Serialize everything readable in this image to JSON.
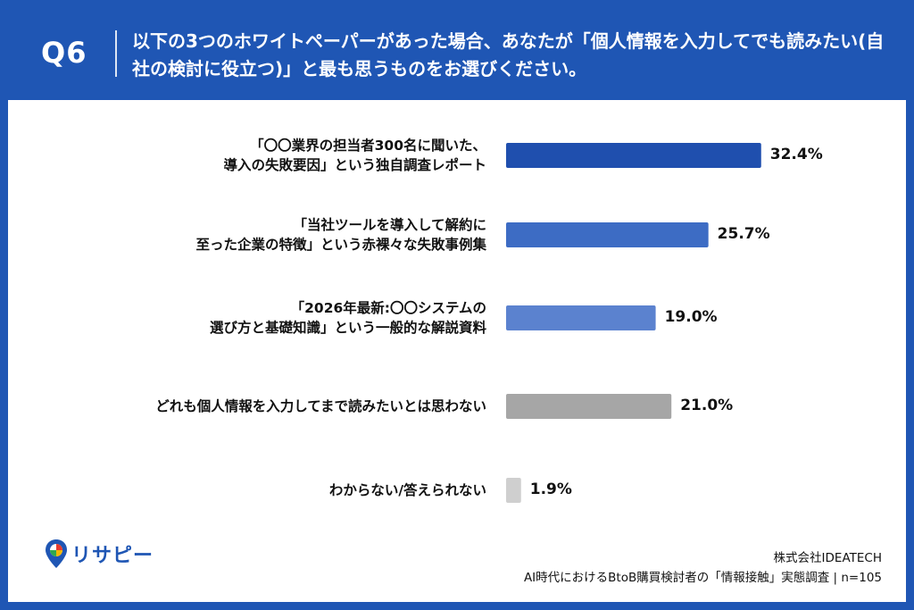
{
  "header": {
    "question_label": "Q6",
    "question_text": "以下の3つのホワイトペーパーがあった場合、あなたが「個人情報を入力してでも読みたい(自社の検討に役立つ)」と最も思うものをお選びください。"
  },
  "chart_data": {
    "type": "bar",
    "orientation": "horizontal",
    "categories": [
      [
        "「〇〇業界の担当者300名に聞いた、",
        "導入の失敗要因」という独自調査レポート"
      ],
      [
        "「当社ツールを導入して解約に",
        "至った企業の特徴」という赤裸々な失敗事例集"
      ],
      [
        "「2026年最新:〇〇システムの",
        "選び方と基礎知識」という一般的な解説資料"
      ],
      [
        "どれも個人情報を入力してまで読みたいとは思わない"
      ],
      [
        "わからない/答えられない"
      ]
    ],
    "values": [
      32.4,
      25.7,
      19.0,
      21.0,
      1.9
    ],
    "value_labels": [
      "32.4%",
      "25.7%",
      "19.0%",
      "21.0%",
      "1.9%"
    ],
    "colors": [
      "#1f4fae",
      "#3d6cc4",
      "#5b82cf",
      "#a6a6a6",
      "#cfcfcf"
    ],
    "xlim": [
      0,
      40
    ],
    "grid": false,
    "legend": "none"
  },
  "footer": {
    "logo_text": "リサピー",
    "company": "株式会社IDEATECH",
    "survey": "AI時代におけるBtoB購買検討者の「情報接触」実態調査 | n=105"
  }
}
